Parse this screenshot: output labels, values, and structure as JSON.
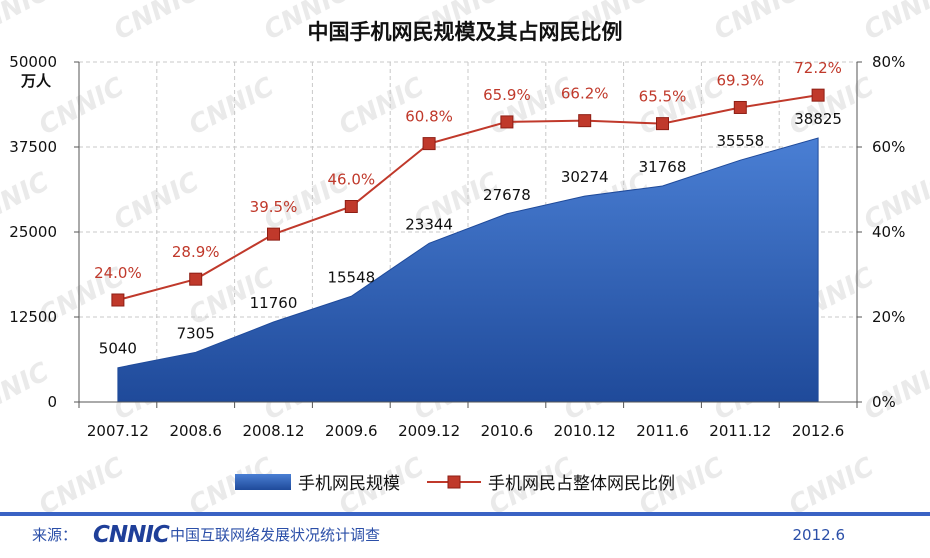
{
  "chart_data": {
    "type": "area+line",
    "title": "中国手机网民规模及其占网民比例",
    "left_axis_unit": "万人",
    "categories": [
      "2007.12",
      "2008.6",
      "2008.12",
      "2009.6",
      "2009.12",
      "2010.6",
      "2010.12",
      "2011.6",
      "2011.12",
      "2012.6"
    ],
    "series": [
      {
        "name": "手机网民规模",
        "type": "area",
        "axis": "left",
        "values": [
          5040,
          7305,
          11760,
          15548,
          23344,
          27678,
          30274,
          31768,
          35558,
          38825
        ],
        "labels": [
          "5040",
          "7305",
          "11760",
          "15548",
          "23344",
          "27678",
          "30274",
          "31768",
          "35558",
          "38825"
        ],
        "color": "#2f5eb3"
      },
      {
        "name": "手机网民占整体网民比例",
        "type": "line",
        "axis": "right",
        "values": [
          24.0,
          28.9,
          39.5,
          46.0,
          60.8,
          65.9,
          66.2,
          65.5,
          69.3,
          72.2
        ],
        "labels": [
          "24.0%",
          "28.9%",
          "39.5%",
          "46.0%",
          "60.8%",
          "65.9%",
          "66.2%",
          "65.5%",
          "69.3%",
          "72.2%"
        ],
        "color": "#c0392b"
      }
    ],
    "y_left": {
      "min": 0,
      "max": 50000,
      "ticks": [
        0,
        12500,
        25000,
        37500,
        50000
      ],
      "tick_labels": [
        "0",
        "12500",
        "25000",
        "37500",
        "50000"
      ]
    },
    "y_right": {
      "min": 0,
      "max": 80,
      "ticks": [
        0,
        20,
        40,
        60,
        80
      ],
      "tick_labels": [
        "0%",
        "20%",
        "40%",
        "60%",
        "80%"
      ]
    },
    "grid": true,
    "legend": "bottom-center"
  },
  "footer": {
    "source_label": "来源：",
    "org_logo": "CNNIC",
    "survey_name": "中国互联网络发展状况统计调查",
    "date": "2012.6"
  },
  "watermark": "CNNIC"
}
